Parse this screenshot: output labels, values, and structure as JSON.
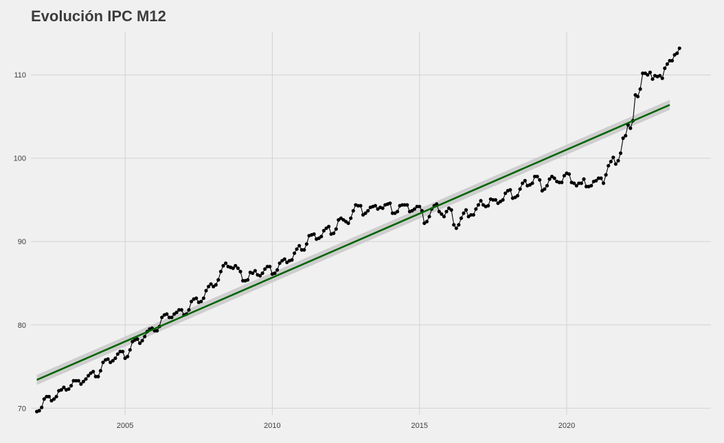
{
  "chart_data": {
    "type": "line",
    "title": "Evolución IPC M12",
    "xlabel": "",
    "ylabel": "",
    "xlim": [
      2001.8,
      2024.9
    ],
    "ylim": [
      69.2,
      115.2
    ],
    "x_ticks": [
      2005,
      2010,
      2015,
      2020
    ],
    "x_tick_labels": [
      "2005",
      "2010",
      "2015",
      "2020"
    ],
    "y_ticks": [
      70,
      80,
      90,
      100,
      110
    ],
    "y_tick_labels": [
      "70",
      "80",
      "90",
      "100",
      "110"
    ],
    "grid": true,
    "legend": "none",
    "background_color": "#f0f0f0",
    "grid_color": "#d2d2d2",
    "series_color": "#000000",
    "trend_color": "#006400",
    "band_color": "#c8c8c8",
    "x_start": 2002.0,
    "x_step": 0.08333,
    "series": [
      {
        "values": [
          69.6,
          69.7,
          70.1,
          71.1,
          71.4,
          71.4,
          70.9,
          71.1,
          71.4,
          72.1,
          72.2,
          72.5,
          72.2,
          72.3,
          72.7,
          73.3,
          73.3,
          73.3,
          72.9,
          73.2,
          73.5,
          73.9,
          74.2,
          74.4,
          73.8,
          73.8,
          74.5,
          75.5,
          75.8,
          75.9,
          75.5,
          75.7,
          76.0,
          76.5,
          76.8,
          76.8,
          76.0,
          76.2,
          77.0,
          78.0,
          78.2,
          78.3,
          77.8,
          78.1,
          78.6,
          79.2,
          79.5,
          79.6,
          79.3,
          79.3,
          79.8,
          80.9,
          81.2,
          81.3,
          80.9,
          80.9,
          81.3,
          81.5,
          81.8,
          81.8,
          81.2,
          81.3,
          81.8,
          82.8,
          83.1,
          83.2,
          82.7,
          82.8,
          83.2,
          84.1,
          84.6,
          84.9,
          84.6,
          84.8,
          85.4,
          86.4,
          87.1,
          87.4,
          87.0,
          86.9,
          86.8,
          87.1,
          86.8,
          86.4,
          85.3,
          85.3,
          85.4,
          86.3,
          86.2,
          86.5,
          86.0,
          85.9,
          86.2,
          86.7,
          87.0,
          87.0,
          86.1,
          86.2,
          86.6,
          87.4,
          87.7,
          87.9,
          87.5,
          87.7,
          87.8,
          88.6,
          89.1,
          89.5,
          89.0,
          89.0,
          89.7,
          90.7,
          90.8,
          90.9,
          90.3,
          90.4,
          90.6,
          91.3,
          91.6,
          91.8,
          90.9,
          91.0,
          91.5,
          92.6,
          92.8,
          92.6,
          92.4,
          92.2,
          92.8,
          93.7,
          94.4,
          94.3,
          94.3,
          93.2,
          93.4,
          93.7,
          94.1,
          94.2,
          94.3,
          93.9,
          94.1,
          94.0,
          94.4,
          94.5,
          94.6,
          93.4,
          93.4,
          93.6,
          94.3,
          94.4,
          94.4,
          94.4,
          93.6,
          93.7,
          93.9,
          94.2,
          94.2,
          93.7,
          92.2,
          92.4,
          93.0,
          93.9,
          94.3,
          94.5,
          93.6,
          93.3,
          93.0,
          93.6,
          94.0,
          93.8,
          92.0,
          91.6,
          92.0,
          92.8,
          93.4,
          93.8,
          93.0,
          93.2,
          93.2,
          93.9,
          94.4,
          94.9,
          94.4,
          94.2,
          94.3,
          95.1,
          95.0,
          95.0,
          94.6,
          94.8,
          95.0,
          95.8,
          96.1,
          96.2,
          95.2,
          95.3,
          95.5,
          96.3,
          97.0,
          97.3,
          96.7,
          96.8,
          97.0,
          97.8,
          97.8,
          97.4,
          96.1,
          96.3,
          96.7,
          97.5,
          97.8,
          97.6,
          97.2,
          97.1,
          97.1,
          97.9,
          98.2,
          98.1,
          97.1,
          97.0,
          96.7,
          97.0,
          97.0,
          97.5,
          96.6,
          96.6,
          96.7,
          97.2,
          97.3,
          97.6,
          97.6,
          97.0,
          98.0,
          99.1,
          99.6,
          100.1,
          99.3,
          99.7,
          100.6,
          102.4,
          102.7,
          104.0,
          103.6,
          104.5,
          107.6,
          107.4,
          108.3,
          110.2,
          110.2,
          110.0,
          110.3,
          109.5,
          109.9,
          109.8,
          109.9,
          109.6,
          110.8,
          111.3,
          111.7,
          111.7,
          112.4,
          112.6,
          113.2
        ]
      }
    ],
    "trend": {
      "x": [
        2002.0,
        2023.5
      ],
      "y": [
        73.4,
        106.4
      ],
      "band_halfwidth": 0.6
    }
  }
}
